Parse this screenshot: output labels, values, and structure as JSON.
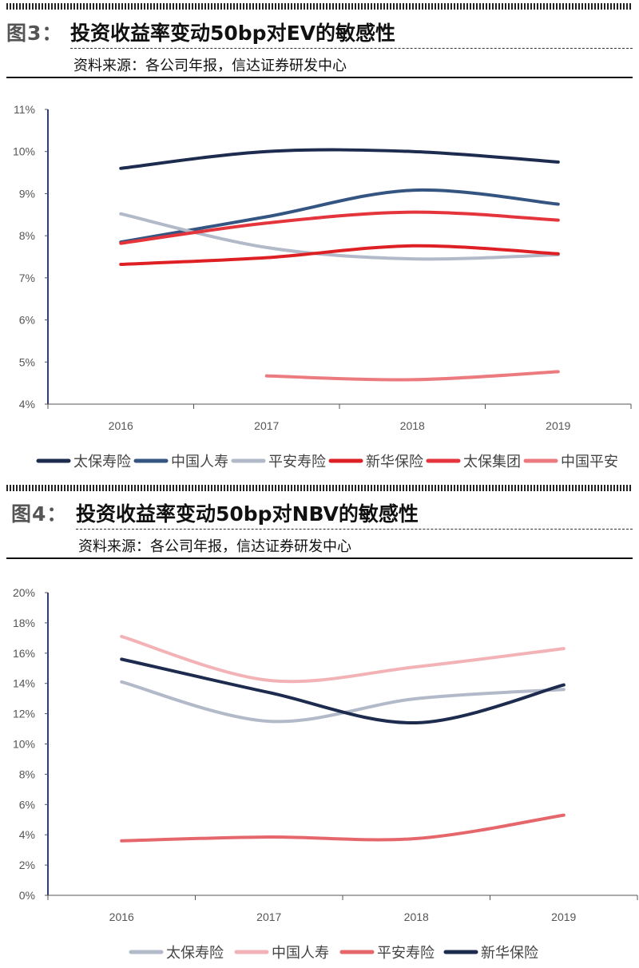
{
  "figure3": {
    "label": "图3：",
    "title": "投资收益率变动50bp对EV的敏感性",
    "source": "资料来源：各公司年报，信达证券研发中心"
  },
  "figure4": {
    "label": "图4：",
    "title": "投资收益率变动50bp对NBV的敏感性",
    "source": "资料来源：各公司年报，信达证券研发中心"
  },
  "chart_data": [
    {
      "type": "line",
      "title": "投资收益率变动50bp对EV的敏感性",
      "categories": [
        "2016",
        "2017",
        "2018",
        "2019"
      ],
      "ylim": [
        4,
        11
      ],
      "yticks": [
        4,
        5,
        6,
        7,
        8,
        9,
        10,
        11
      ],
      "ytick_labels": [
        "4%",
        "5%",
        "6%",
        "7%",
        "8%",
        "9%",
        "10%",
        "11%"
      ],
      "legend_position": "bottom",
      "series": [
        {
          "name": "太保寿险",
          "color": "#1d2b4f",
          "values": [
            9.6,
            10.0,
            10.0,
            9.75
          ]
        },
        {
          "name": "中国人寿",
          "color": "#345582",
          "values": [
            7.85,
            8.45,
            9.08,
            8.75
          ]
        },
        {
          "name": "平安寿险",
          "color": "#b2b9c8",
          "values": [
            8.52,
            7.72,
            7.45,
            7.55
          ]
        },
        {
          "name": "新华保险",
          "color": "#de2024",
          "values": [
            7.32,
            7.48,
            7.76,
            7.57
          ]
        },
        {
          "name": "太保集团",
          "color": "#e4353c",
          "values": [
            7.82,
            8.3,
            8.56,
            8.37
          ]
        },
        {
          "name": "中国平安",
          "color": "#ec7b80",
          "values": [
            null,
            4.67,
            4.58,
            4.77
          ]
        }
      ]
    },
    {
      "type": "line",
      "title": "投资收益率变动50bp对NBV的敏感性",
      "categories": [
        "2016",
        "2017",
        "2018",
        "2019"
      ],
      "ylim": [
        0,
        20
      ],
      "yticks": [
        0,
        2,
        4,
        6,
        8,
        10,
        12,
        14,
        16,
        18,
        20
      ],
      "ytick_labels": [
        "0%",
        "2%",
        "4%",
        "6%",
        "8%",
        "10%",
        "12%",
        "14%",
        "16%",
        "18%",
        "20%"
      ],
      "legend_position": "bottom",
      "series": [
        {
          "name": "太保寿险",
          "color": "#b2b9c8",
          "values": [
            14.1,
            11.5,
            13.0,
            13.6
          ]
        },
        {
          "name": "中国人寿",
          "color": "#f3b2b6",
          "values": [
            17.1,
            14.2,
            15.1,
            16.3
          ]
        },
        {
          "name": "平安寿险",
          "color": "#e5676c",
          "values": [
            3.6,
            3.85,
            3.75,
            5.3
          ]
        },
        {
          "name": "新华保险",
          "color": "#1d2b4f",
          "values": [
            15.6,
            13.4,
            11.4,
            13.9
          ]
        }
      ]
    }
  ]
}
